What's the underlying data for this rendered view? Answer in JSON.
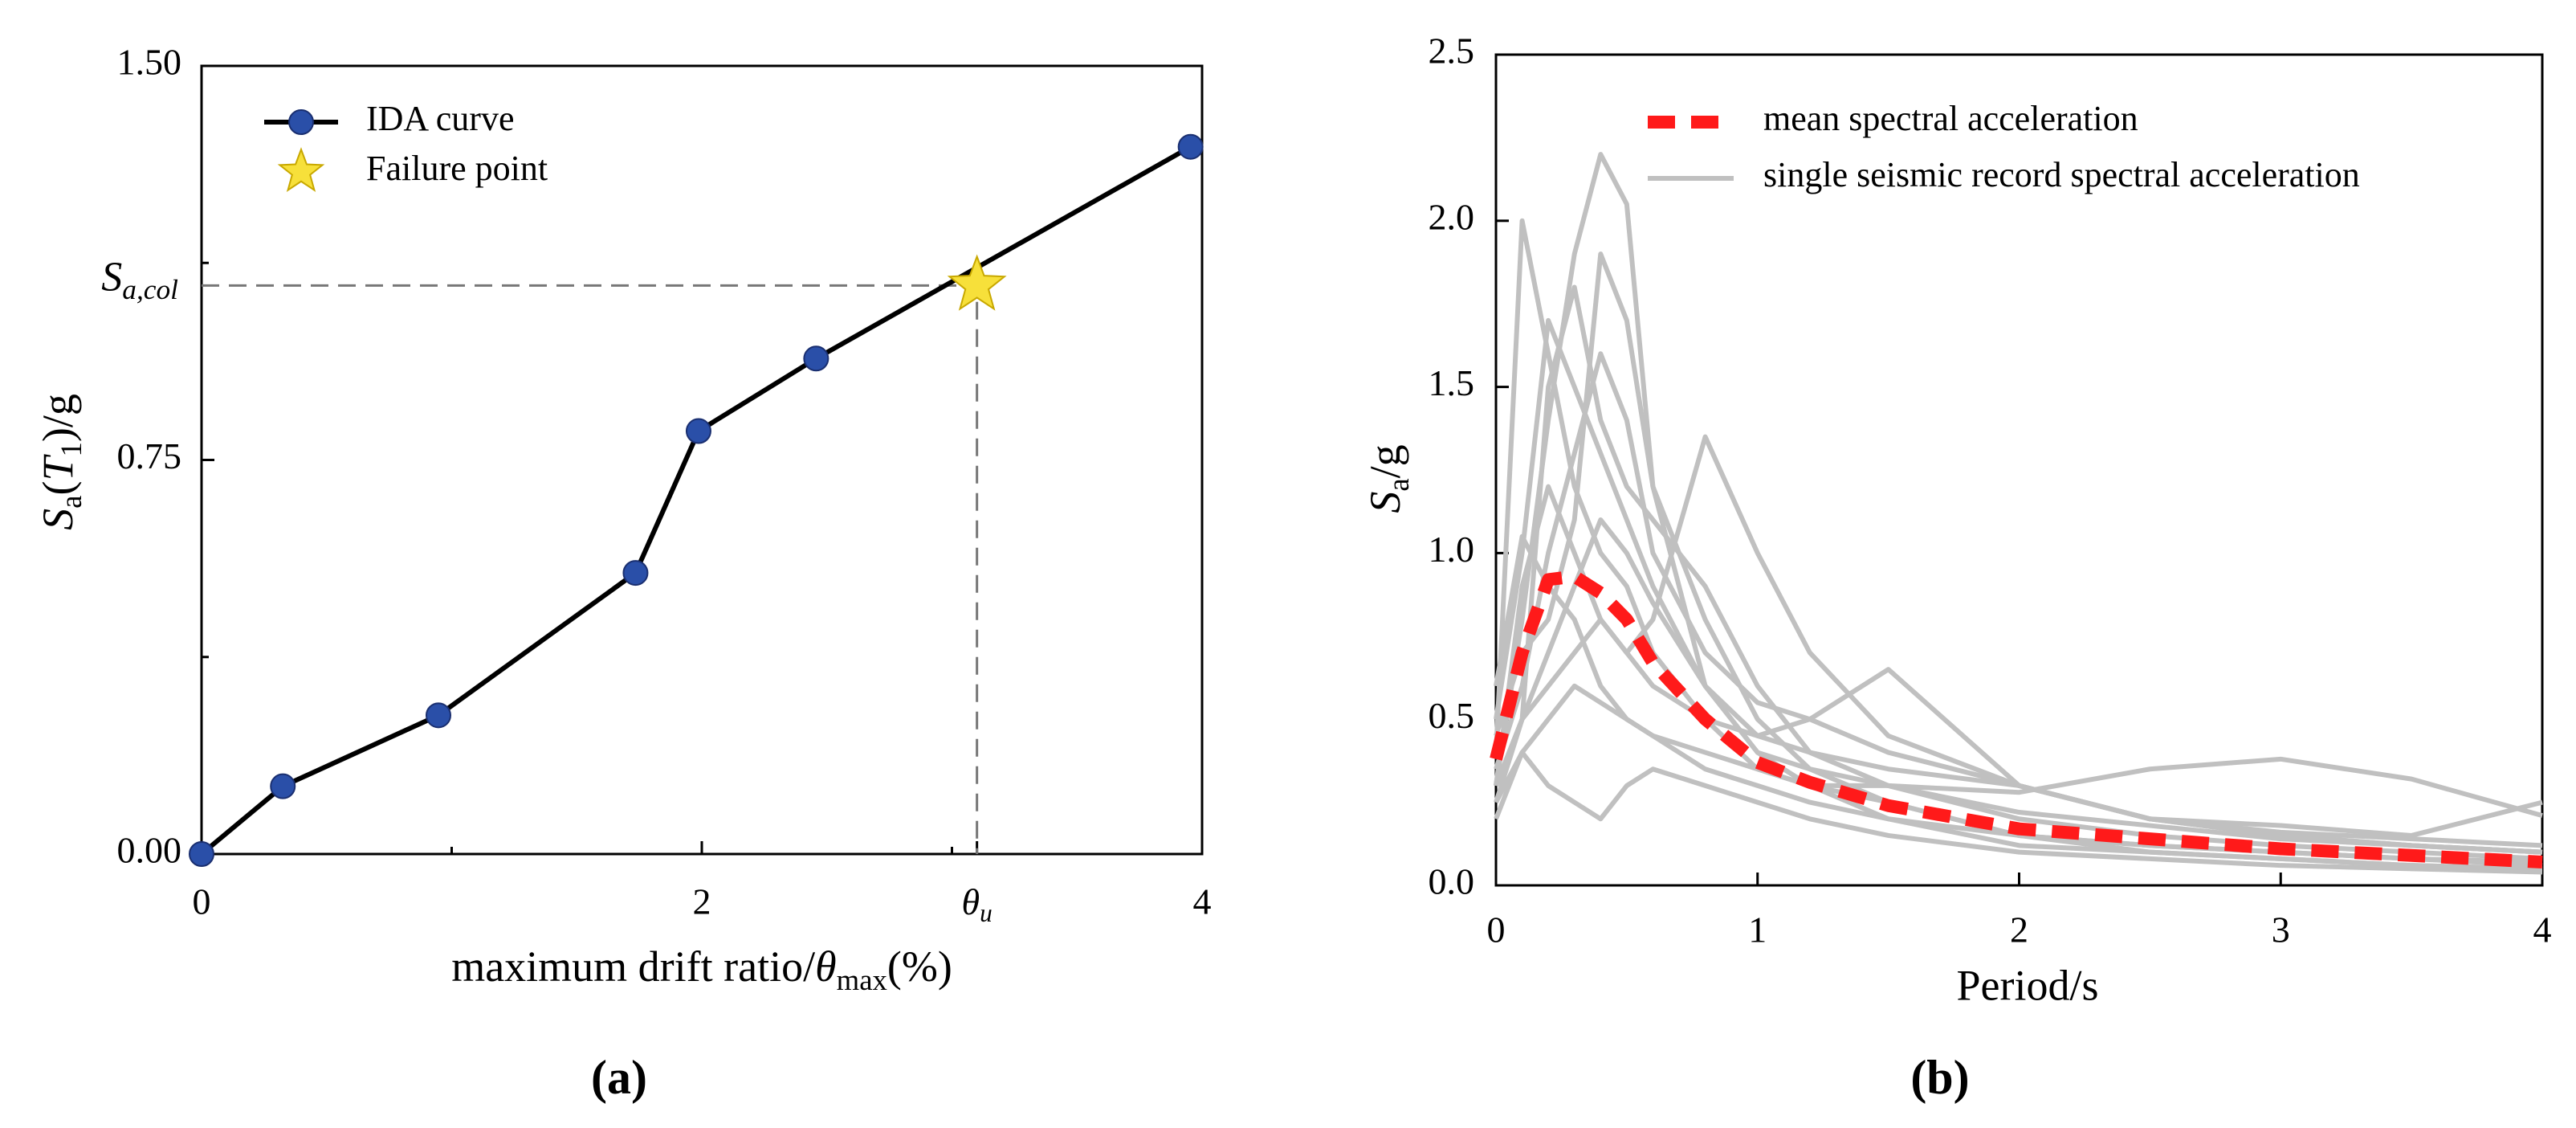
{
  "chart_data": [
    {
      "type": "line",
      "panel_label": "(a)",
      "x_label": "maximum drift ratio/θmax(%)",
      "y_label": "Sa(T1)/g",
      "xlim": [
        0,
        4
      ],
      "ylim": [
        0,
        1.5
      ],
      "xticks": [
        0,
        2,
        {
          "value": 3.1,
          "label": "θu"
        },
        4
      ],
      "yticks": [
        {
          "value": 0,
          "label": "0.00"
        },
        0.75,
        {
          "value": 1.5,
          "label": "1.50"
        }
      ],
      "xminor": [
        1,
        3
      ],
      "yminor": [
        0.375,
        1.125
      ],
      "series": [
        {
          "name": "IDA curve",
          "color": "#000000",
          "marker_color": "#2a4fa8",
          "x": [
            0,
            0.325,
            0.947,
            1.735,
            1.987,
            2.457,
            3.954
          ],
          "values": [
            0,
            0.129,
            0.264,
            0.535,
            0.805,
            0.943,
            1.346
          ]
        },
        {
          "name": "Failure point",
          "color": "#f7e03a",
          "x": [
            3.1
          ],
          "values": [
            1.082
          ]
        }
      ],
      "reference": {
        "label": "Sa,col",
        "x": 3.1,
        "y": 1.082
      }
    },
    {
      "type": "multi_line",
      "panel_label": "(b)",
      "x_label": "Period/s",
      "y_label": "Sa/g",
      "xlim": [
        0,
        4
      ],
      "ylim": [
        0,
        2.5
      ],
      "xticks": [
        0,
        1,
        2,
        3,
        4
      ],
      "yticks": [
        {
          "value": 0,
          "label": "0.0"
        },
        0.5,
        {
          "value": 1,
          "label": "1.0"
        },
        1.5,
        {
          "value": 2,
          "label": "2.0"
        },
        2.5
      ],
      "x": [
        0,
        0.1,
        0.2,
        0.3,
        0.4,
        0.5,
        0.6,
        0.8,
        1.0,
        1.2,
        1.5,
        2.0,
        2.5,
        3.0,
        3.5,
        4.0
      ],
      "mean": {
        "name": "mean spectral acceleration",
        "color": "#ff1a1a",
        "values": [
          0.38,
          0.7,
          0.92,
          0.93,
          0.88,
          0.8,
          0.67,
          0.5,
          0.37,
          0.31,
          0.24,
          0.17,
          0.14,
          0.11,
          0.09,
          0.07
        ]
      },
      "records": {
        "name": "single seismic record spectral acceleration",
        "color": "#c0c0c0",
        "series": [
          [
            0.3,
            0.8,
            1.4,
            1.9,
            2.2,
            2.05,
            1.2,
            0.6,
            0.4,
            0.3,
            0.25,
            0.15,
            0.1,
            0.08,
            0.06,
            0.05
          ],
          [
            0.4,
            2.0,
            1.6,
            1.2,
            1.0,
            0.9,
            0.7,
            0.5,
            0.35,
            0.3,
            0.2,
            0.12,
            0.1,
            0.08,
            0.06,
            0.05
          ],
          [
            0.3,
            0.5,
            0.6,
            0.7,
            0.8,
            0.7,
            0.8,
            1.35,
            1.0,
            0.7,
            0.45,
            0.3,
            0.2,
            0.15,
            0.12,
            0.1
          ],
          [
            0.25,
            0.4,
            0.5,
            0.6,
            0.55,
            0.5,
            0.45,
            0.4,
            0.35,
            0.3,
            0.3,
            0.28,
            0.35,
            0.38,
            0.32,
            0.21
          ],
          [
            0.5,
            1.0,
            1.7,
            1.5,
            1.3,
            1.1,
            0.9,
            0.6,
            0.4,
            0.35,
            0.3,
            0.2,
            0.15,
            0.12,
            0.1,
            0.08
          ],
          [
            0.2,
            0.4,
            0.3,
            0.25,
            0.2,
            0.3,
            0.35,
            0.3,
            0.25,
            0.2,
            0.15,
            0.1,
            0.08,
            0.06,
            0.05,
            0.04
          ],
          [
            0.35,
            0.6,
            1.0,
            1.3,
            1.6,
            1.4,
            1.0,
            0.7,
            0.55,
            0.5,
            0.4,
            0.3,
            0.2,
            0.15,
            0.12,
            0.1
          ],
          [
            0.3,
            0.9,
            1.2,
            1.0,
            0.8,
            0.7,
            0.6,
            0.5,
            0.45,
            0.5,
            0.65,
            0.3,
            0.2,
            0.18,
            0.15,
            0.25
          ],
          [
            0.45,
            0.7,
            0.8,
            1.1,
            1.9,
            1.7,
            1.2,
            0.8,
            0.5,
            0.35,
            0.25,
            0.15,
            0.12,
            0.1,
            0.08,
            0.06
          ],
          [
            0.25,
            0.5,
            0.7,
            0.9,
            1.1,
            1.0,
            0.85,
            0.6,
            0.45,
            0.4,
            0.35,
            0.3,
            0.2,
            0.16,
            0.14,
            0.12
          ],
          [
            0.6,
            1.05,
            0.9,
            0.8,
            0.6,
            0.5,
            0.45,
            0.35,
            0.3,
            0.25,
            0.2,
            0.15,
            0.12,
            0.1,
            0.08,
            0.07
          ],
          [
            0.3,
            0.5,
            1.5,
            1.8,
            1.4,
            1.2,
            1.1,
            0.9,
            0.6,
            0.4,
            0.3,
            0.22,
            0.18,
            0.14,
            0.12,
            0.1
          ]
        ]
      }
    }
  ]
}
